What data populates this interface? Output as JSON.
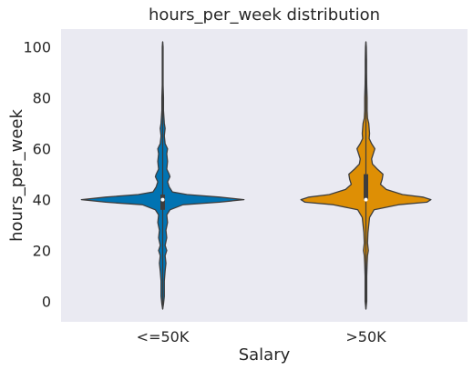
{
  "chart_data": {
    "type": "violin",
    "title": "hours_per_week distribution",
    "xlabel": "Salary",
    "ylabel": "hours_per_week",
    "categories": [
      "<=50K",
      ">50K"
    ],
    "ylim": [
      -8,
      107
    ],
    "yticks": [
      0,
      20,
      40,
      60,
      80,
      100
    ],
    "grid": false,
    "background": "#EAEAF2",
    "colors": [
      "#0173B2",
      "#DE8F05"
    ],
    "violins": [
      {
        "category": "<=50K",
        "min": -3,
        "max": 102,
        "q1": 36,
        "median": 40,
        "q3": 42,
        "profile": [
          [
            -3,
            0
          ],
          [
            -1,
            0.01
          ],
          [
            2,
            0.02
          ],
          [
            8,
            0.02
          ],
          [
            12,
            0.03
          ],
          [
            15,
            0.04
          ],
          [
            18,
            0.03
          ],
          [
            20,
            0.05
          ],
          [
            22,
            0.03
          ],
          [
            25,
            0.05
          ],
          [
            28,
            0.04
          ],
          [
            31,
            0.06
          ],
          [
            34,
            0.05
          ],
          [
            36,
            0.09
          ],
          [
            38,
            0.25
          ],
          [
            39,
            0.7
          ],
          [
            40,
            1.0
          ],
          [
            41,
            0.7
          ],
          [
            42,
            0.3
          ],
          [
            43,
            0.12
          ],
          [
            45,
            0.08
          ],
          [
            47,
            0.06
          ],
          [
            49,
            0.09
          ],
          [
            50,
            0.08
          ],
          [
            52,
            0.05
          ],
          [
            55,
            0.06
          ],
          [
            58,
            0.05
          ],
          [
            60,
            0.06
          ],
          [
            62,
            0.03
          ],
          [
            65,
            0.02
          ],
          [
            68,
            0.03
          ],
          [
            70,
            0.02
          ],
          [
            75,
            0.01
          ],
          [
            80,
            0.01
          ],
          [
            85,
            0.005
          ],
          [
            90,
            0.005
          ],
          [
            95,
            0.005
          ],
          [
            100,
            0.005
          ],
          [
            102,
            0
          ]
        ]
      },
      {
        "category": ">50K",
        "min": -3,
        "max": 102,
        "q1": 40,
        "median": 40,
        "q3": 50,
        "profile": [
          [
            -3,
            0
          ],
          [
            0,
            0.01
          ],
          [
            10,
            0.01
          ],
          [
            15,
            0.015
          ],
          [
            18,
            0.02
          ],
          [
            20,
            0.03
          ],
          [
            23,
            0.02
          ],
          [
            27,
            0.025
          ],
          [
            30,
            0.035
          ],
          [
            33,
            0.045
          ],
          [
            36,
            0.1
          ],
          [
            38,
            0.4
          ],
          [
            39,
            0.75
          ],
          [
            40,
            0.8
          ],
          [
            41,
            0.7
          ],
          [
            42,
            0.45
          ],
          [
            44,
            0.25
          ],
          [
            46,
            0.18
          ],
          [
            48,
            0.2
          ],
          [
            50,
            0.21
          ],
          [
            52,
            0.14
          ],
          [
            54,
            0.08
          ],
          [
            56,
            0.07
          ],
          [
            58,
            0.09
          ],
          [
            60,
            0.11
          ],
          [
            62,
            0.07
          ],
          [
            64,
            0.04
          ],
          [
            66,
            0.045
          ],
          [
            68,
            0.04
          ],
          [
            70,
            0.035
          ],
          [
            72,
            0.02
          ],
          [
            75,
            0.015
          ],
          [
            80,
            0.015
          ],
          [
            85,
            0.01
          ],
          [
            90,
            0.008
          ],
          [
            95,
            0.008
          ],
          [
            100,
            0.005
          ],
          [
            102,
            0
          ]
        ]
      }
    ]
  }
}
